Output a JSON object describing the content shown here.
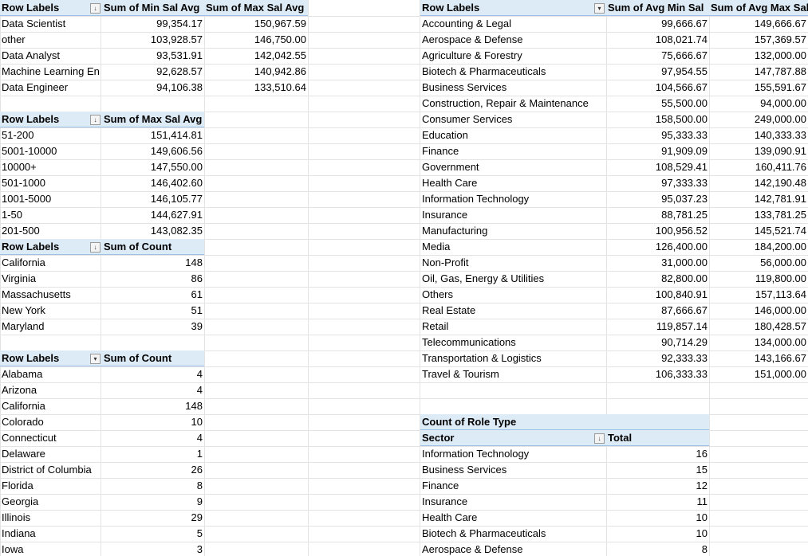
{
  "pivot_role_salary": {
    "headers": [
      "Row Labels",
      "Sum of Min Sal Avg",
      "Sum of Max Sal Avg"
    ],
    "rows": [
      [
        "Data Scientist",
        "99,354.17",
        "150,967.59"
      ],
      [
        "other",
        "103,928.57",
        "146,750.00"
      ],
      [
        "Data Analyst",
        "93,531.91",
        "142,042.55"
      ],
      [
        "Machine Learning En",
        "92,628.57",
        "140,942.86"
      ],
      [
        "Data Engineer",
        "94,106.38",
        "133,510.64"
      ]
    ],
    "filter_icon": "sort-descending-icon"
  },
  "pivot_size_salary": {
    "headers": [
      "Row Labels",
      "Sum of Max Sal Avg"
    ],
    "rows": [
      [
        "51-200",
        "151,414.81"
      ],
      [
        "5001-10000",
        "149,606.56"
      ],
      [
        "10000+",
        "147,550.00"
      ],
      [
        "501-1000",
        "146,402.60"
      ],
      [
        "1001-5000",
        "146,105.77"
      ],
      [
        "1-50",
        "144,627.91"
      ],
      [
        "201-500",
        "143,082.35"
      ]
    ],
    "filter_icon": "sort-descending-icon"
  },
  "pivot_top_states": {
    "headers": [
      "Row Labels",
      "Sum of Count"
    ],
    "rows": [
      [
        "California",
        "148"
      ],
      [
        "Virginia",
        "86"
      ],
      [
        "Massachusetts",
        "61"
      ],
      [
        "New York",
        "51"
      ],
      [
        "Maryland",
        "39"
      ]
    ],
    "filter_icon": "filter-sort-icon"
  },
  "pivot_all_states": {
    "headers": [
      "Row Labels",
      "Sum of Count"
    ],
    "rows": [
      [
        "Alabama",
        "4"
      ],
      [
        "Arizona",
        "4"
      ],
      [
        "California",
        "148"
      ],
      [
        "Colorado",
        "10"
      ],
      [
        "Connecticut",
        "4"
      ],
      [
        "Delaware",
        "1"
      ],
      [
        "District of Columbia",
        "26"
      ],
      [
        "Florida",
        "8"
      ],
      [
        "Georgia",
        "9"
      ],
      [
        "Illinois",
        "29"
      ],
      [
        "Indiana",
        "5"
      ],
      [
        "Iowa",
        "3"
      ]
    ],
    "filter_icon": "dropdown-arrow-icon"
  },
  "pivot_sector_salary": {
    "headers": [
      "Row Labels",
      "Sum of Avg Min Sal",
      "Sum of Avg Max Sal"
    ],
    "rows": [
      [
        "Accounting & Legal",
        "99,666.67",
        "149,666.67"
      ],
      [
        "Aerospace & Defense",
        "108,021.74",
        "157,369.57"
      ],
      [
        "Agriculture & Forestry",
        "75,666.67",
        "132,000.00"
      ],
      [
        "Biotech & Pharmaceuticals",
        "97,954.55",
        "147,787.88"
      ],
      [
        "Business Services",
        "104,566.67",
        "155,591.67"
      ],
      [
        "Construction, Repair & Maintenance",
        "55,500.00",
        "94,000.00"
      ],
      [
        "Consumer Services",
        "158,500.00",
        "249,000.00"
      ],
      [
        "Education",
        "95,333.33",
        "140,333.33"
      ],
      [
        "Finance",
        "91,909.09",
        "139,090.91"
      ],
      [
        "Government",
        "108,529.41",
        "160,411.76"
      ],
      [
        "Health Care",
        "97,333.33",
        "142,190.48"
      ],
      [
        "Information Technology",
        "95,037.23",
        "142,781.91"
      ],
      [
        "Insurance",
        "88,781.25",
        "133,781.25"
      ],
      [
        "Manufacturing",
        "100,956.52",
        "145,521.74"
      ],
      [
        "Media",
        "126,400.00",
        "184,200.00"
      ],
      [
        "Non-Profit",
        "31,000.00",
        "56,000.00"
      ],
      [
        "Oil, Gas, Energy & Utilities",
        "82,800.00",
        "119,800.00"
      ],
      [
        "Others",
        "100,840.91",
        "157,113.64"
      ],
      [
        "Real Estate",
        "87,666.67",
        "146,000.00"
      ],
      [
        "Retail",
        "119,857.14",
        "180,428.57"
      ],
      [
        "Telecommunications",
        "90,714.29",
        "134,000.00"
      ],
      [
        "Transportation & Logistics",
        "92,333.33",
        "143,166.67"
      ],
      [
        "Travel & Tourism",
        "106,333.33",
        "151,000.00"
      ]
    ],
    "filter_icon": "dropdown-arrow-icon"
  },
  "pivot_role_type": {
    "title": "Count of Role Type",
    "headers": [
      "Sector",
      "Total"
    ],
    "rows": [
      [
        "Information Technology",
        "16"
      ],
      [
        "Business Services",
        "15"
      ],
      [
        "Finance",
        "12"
      ],
      [
        "Insurance",
        "11"
      ],
      [
        "Health Care",
        "10"
      ],
      [
        "Biotech & Pharmaceuticals",
        "10"
      ],
      [
        "Aerospace & Defense",
        "8"
      ]
    ],
    "filter_icon": "sort-descending-icon"
  }
}
